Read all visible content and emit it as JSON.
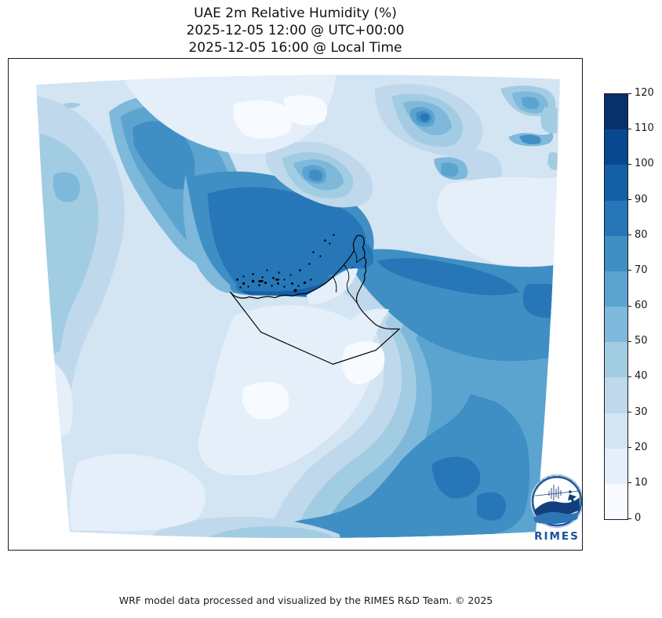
{
  "title": {
    "line1": "UAE 2m Relative Humidity (%)",
    "line2": "2025-12-05 12:00 @ UTC+00:00",
    "line3": "2025-12-05 16:00 @ Local Time"
  },
  "footer": "WRF model data processed and visualized by the RIMES R&D Team. © 2025",
  "colorbar": {
    "orientation": "vertical",
    "min": 0,
    "max": 120,
    "unit": "%",
    "ticks": [
      0,
      10,
      20,
      30,
      40,
      50,
      60,
      70,
      80,
      90,
      100,
      110,
      120
    ],
    "colors": [
      "#f7fbff",
      "#e5effa",
      "#d3e4f3",
      "#bfd8ec",
      "#a2cce2",
      "#7eb8da",
      "#5ca4d0",
      "#3f8fc4",
      "#2777b8",
      "#1360a7",
      "#08488f",
      "#08306b"
    ]
  },
  "logo": {
    "name": "RIMES",
    "ring_text": "Regional Integrated Multi-Hazard Early Warning System",
    "accent": "#1b4f9c",
    "wave_dark": "#123f7c",
    "wave_light": "#2e75b6",
    "ring_text_color": "#2e8b9a"
  },
  "map": {
    "outlined_country": "United Arab Emirates",
    "border_color": "#000000",
    "base_field_color": "#d3e4f3"
  },
  "chart_data": {
    "type": "heatmap",
    "subtype": "filled-contour weather map",
    "title": "UAE 2m Relative Humidity (%)",
    "variable": "2m relative humidity",
    "units": "%",
    "levels": [
      0,
      10,
      20,
      30,
      40,
      50,
      60,
      70,
      80,
      90,
      100,
      110,
      120
    ],
    "legend_position": "right colorbar",
    "region_readings": [
      {
        "region": "Persian Gulf water along UAE coast",
        "value_range": "80-100"
      },
      {
        "region": "Western / central Persian Gulf",
        "value_range": "70-90"
      },
      {
        "region": "Zagros coastal mountains (Iran, upper left)",
        "value_range": "50-80"
      },
      {
        "region": "Iran interior mottled patches (top center)",
        "value_range": "30-90"
      },
      {
        "region": "Strait of Hormuz / Gulf of Oman band",
        "value_range": "70-90"
      },
      {
        "region": "UAE inland and Rub al Khali desert (center)",
        "value_range": "0-30"
      },
      {
        "region": "Arabian Sea / SE Oman (bottom right)",
        "value_range": "60-90"
      },
      {
        "region": "Saudi interior (left band)",
        "value_range": "30-50"
      },
      {
        "region": "Bottom-left desert corner",
        "value_range": "10-30"
      }
    ]
  }
}
